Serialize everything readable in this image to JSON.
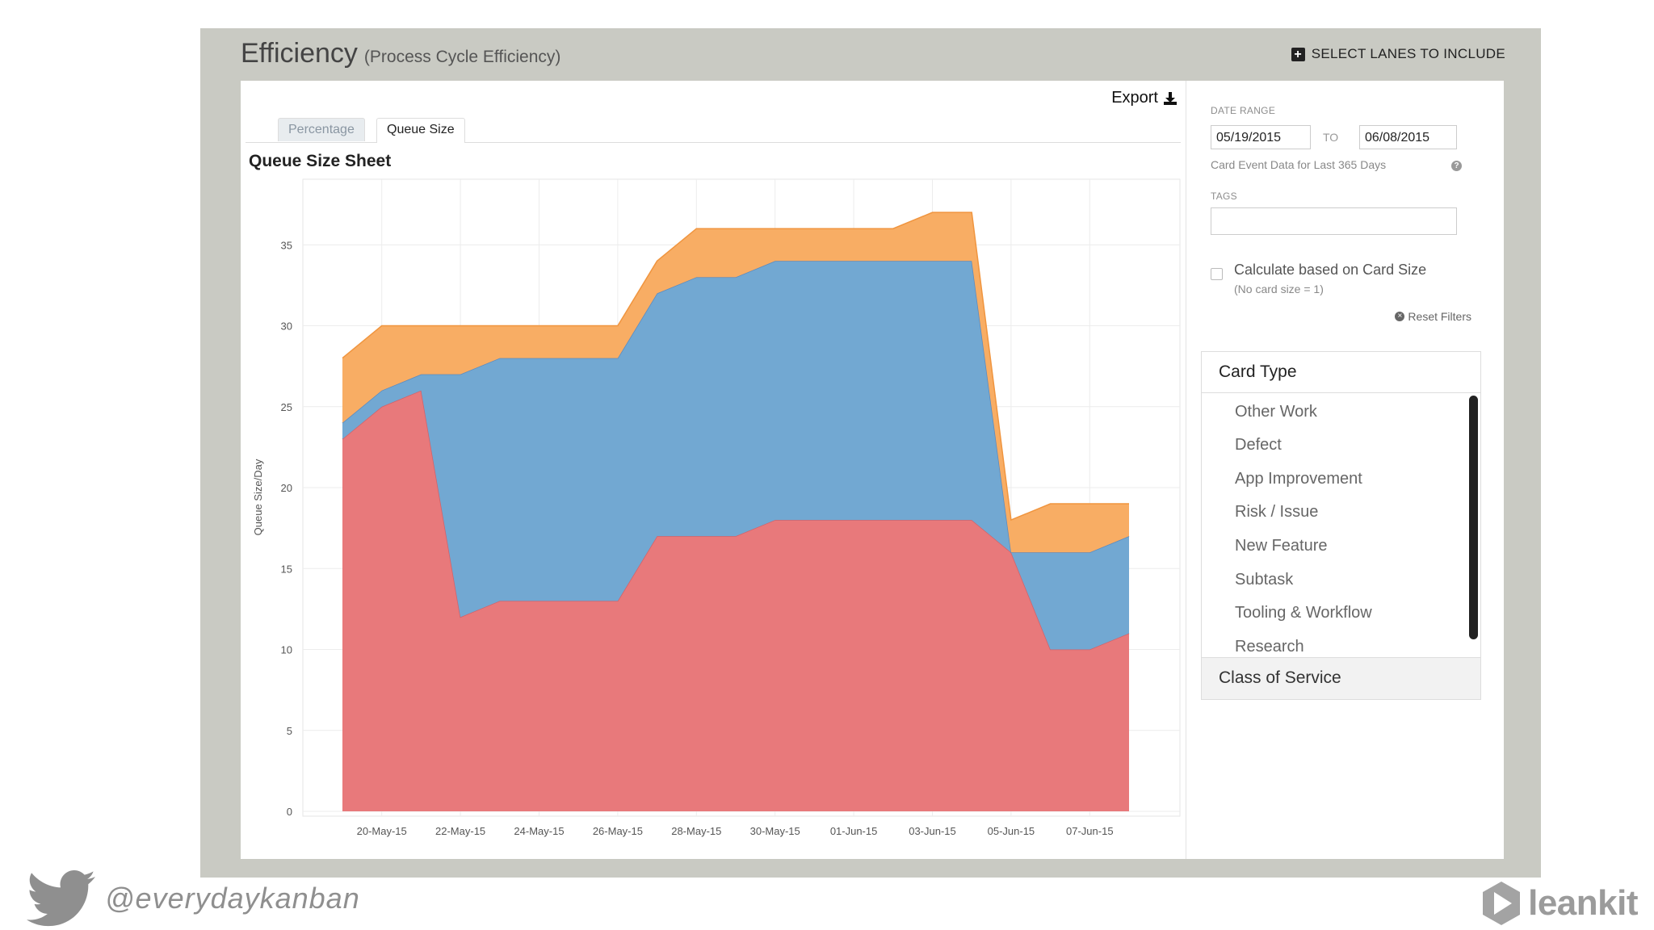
{
  "header": {
    "title": "Efficiency",
    "subtitle": "(Process Cycle Efficiency)",
    "select_lanes_label": "SELECT LANES TO INCLUDE"
  },
  "toolbar": {
    "export_label": "Export"
  },
  "tabs": [
    {
      "label": "Percentage",
      "active": false
    },
    {
      "label": "Queue Size",
      "active": true
    }
  ],
  "sheet_title": "Queue Size Sheet",
  "filters": {
    "date_range_label": "DATE RANGE",
    "from_date": "05/19/2015",
    "to_label": "TO",
    "to_date": "06/08/2015",
    "hint": "Card Event Data for Last 365 Days",
    "tags_label": "TAGS",
    "tags_value": "",
    "card_size_label": "Calculate based on Card Size",
    "card_size_sub": "(No card size = 1)",
    "card_size_checked": false,
    "reset_label": "Reset Filters"
  },
  "card_type": {
    "header": "Card Type",
    "items": [
      "Other Work",
      "Defect",
      "App Improvement",
      "Risk / Issue",
      "New Feature",
      "Subtask",
      "Tooling & Workflow",
      "Research"
    ]
  },
  "class_of_service": {
    "header": "Class of Service"
  },
  "footer": {
    "handle": "@everydaykanban",
    "logo_text": "leankit"
  },
  "colors": {
    "frame_bg": "#c9cac3",
    "series_red": "#e8797b",
    "series_blue": "#72a8d2",
    "series_orange": "#f8ad64",
    "red_line": "#d1626a",
    "blue_line": "#5a8ac0",
    "orange_line": "#f0953f"
  },
  "chart_data": {
    "type": "area",
    "stacked": true,
    "title": "Queue Size Sheet",
    "ylabel": "Queue Size/Day",
    "xlabel": "",
    "ylim": [
      0,
      40
    ],
    "yticks": [
      0,
      5,
      10,
      15,
      20,
      25,
      30,
      35
    ],
    "grid": true,
    "x": [
      "19-May-15",
      "20-May-15",
      "21-May-15",
      "22-May-15",
      "23-May-15",
      "24-May-15",
      "25-May-15",
      "26-May-15",
      "27-May-15",
      "28-May-15",
      "29-May-15",
      "30-May-15",
      "31-May-15",
      "01-Jun-15",
      "02-Jun-15",
      "03-Jun-15",
      "04-Jun-15",
      "05-Jun-15",
      "06-Jun-15",
      "07-Jun-15",
      "08-Jun-15"
    ],
    "x_tick_labels": [
      "20-May-15",
      "22-May-15",
      "24-May-15",
      "26-May-15",
      "28-May-15",
      "30-May-15",
      "01-Jun-15",
      "03-Jun-15",
      "05-Jun-15",
      "07-Jun-15"
    ],
    "series": [
      {
        "color": "#e8797b",
        "values": [
          23,
          25,
          26,
          12,
          13,
          13,
          13,
          13,
          17,
          17,
          17,
          18,
          18,
          18,
          18,
          18,
          18,
          16,
          10,
          10,
          11
        ]
      },
      {
        "color": "#72a8d2",
        "values": [
          1,
          1,
          1,
          15,
          15,
          15,
          15,
          15,
          15,
          16,
          16,
          16,
          16,
          16,
          16,
          16,
          16,
          0,
          6,
          6,
          6
        ]
      },
      {
        "color": "#f8ad64",
        "values": [
          4,
          4,
          3,
          3,
          2,
          2,
          2,
          2,
          2,
          3,
          3,
          2,
          2,
          2,
          2,
          3,
          3,
          2,
          3,
          3,
          2
        ]
      }
    ]
  }
}
